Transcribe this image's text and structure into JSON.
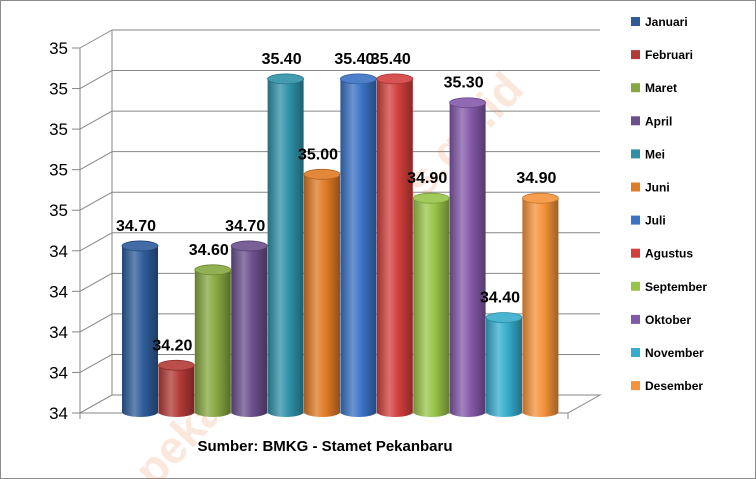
{
  "chart_data": {
    "type": "bar",
    "xlabel": "Sumber: BMKG - Stamet Pekanbaru",
    "ylim": [
      34.0,
      35.5
    ],
    "y_tick_labels": [
      "34",
      "34",
      "34",
      "34",
      "34",
      "35",
      "35",
      "35",
      "35",
      "35"
    ],
    "grid": true,
    "legend_position": "right",
    "series": [
      {
        "name": "Januari",
        "value": 34.7,
        "label": "34.70",
        "color": "#2e5c9a"
      },
      {
        "name": "Februari",
        "value": 34.2,
        "label": "34.20",
        "color": "#b23a36"
      },
      {
        "name": "Maret",
        "value": 34.6,
        "label": "34.60",
        "color": "#86a840"
      },
      {
        "name": "April",
        "value": 34.7,
        "label": "34.70",
        "color": "#6a4f8c"
      },
      {
        "name": "Mei",
        "value": 35.4,
        "label": "35.40",
        "color": "#2f91a8"
      },
      {
        "name": "Juni",
        "value": 35.0,
        "label": "35.00",
        "color": "#e07b25"
      },
      {
        "name": "Juli",
        "value": 35.4,
        "label": "35.40",
        "color": "#3a72c4"
      },
      {
        "name": "Agustus",
        "value": 35.4,
        "label": "35.40",
        "color": "#d23f3c"
      },
      {
        "name": "September",
        "value": 34.9,
        "label": "34.90",
        "color": "#98c448"
      },
      {
        "name": "Oktober",
        "value": 35.3,
        "label": "35.30",
        "color": "#8258a8"
      },
      {
        "name": "November",
        "value": 34.4,
        "label": "34.40",
        "color": "#35adcc"
      },
      {
        "name": "Desember",
        "value": 34.9,
        "label": "34.90",
        "color": "#f5923a"
      }
    ]
  },
  "watermark": "pekanbarukota.bps.go.id"
}
